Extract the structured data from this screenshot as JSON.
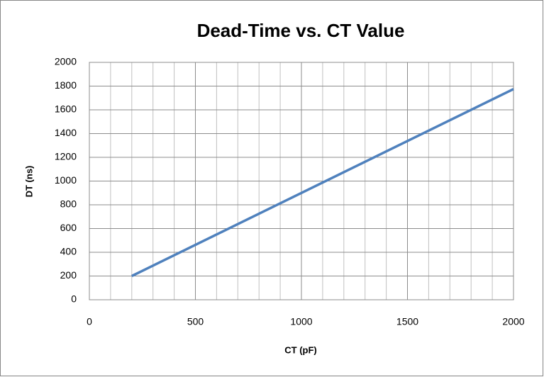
{
  "chart_data": {
    "type": "line",
    "title": "Dead-Time vs. CT Value",
    "x_label": "CT (pF)",
    "y_label": "DT (ns)",
    "x": [
      200,
      2000
    ],
    "series": [
      {
        "name": "DT",
        "color": "#4f81bd",
        "values": [
          200,
          1775
        ]
      }
    ],
    "xlim": [
      0,
      2000
    ],
    "xticks": [
      0,
      500,
      1000,
      1500,
      2000
    ],
    "xminorticks": [
      100,
      200,
      300,
      400,
      600,
      700,
      800,
      900,
      1100,
      1200,
      1300,
      1400,
      1600,
      1700,
      1800,
      1900
    ],
    "ylim": [
      0,
      2000
    ],
    "yticks": [
      0,
      200,
      400,
      600,
      800,
      1000,
      1200,
      1400,
      1600,
      1800,
      2000
    ],
    "grid": true,
    "legend": false
  }
}
